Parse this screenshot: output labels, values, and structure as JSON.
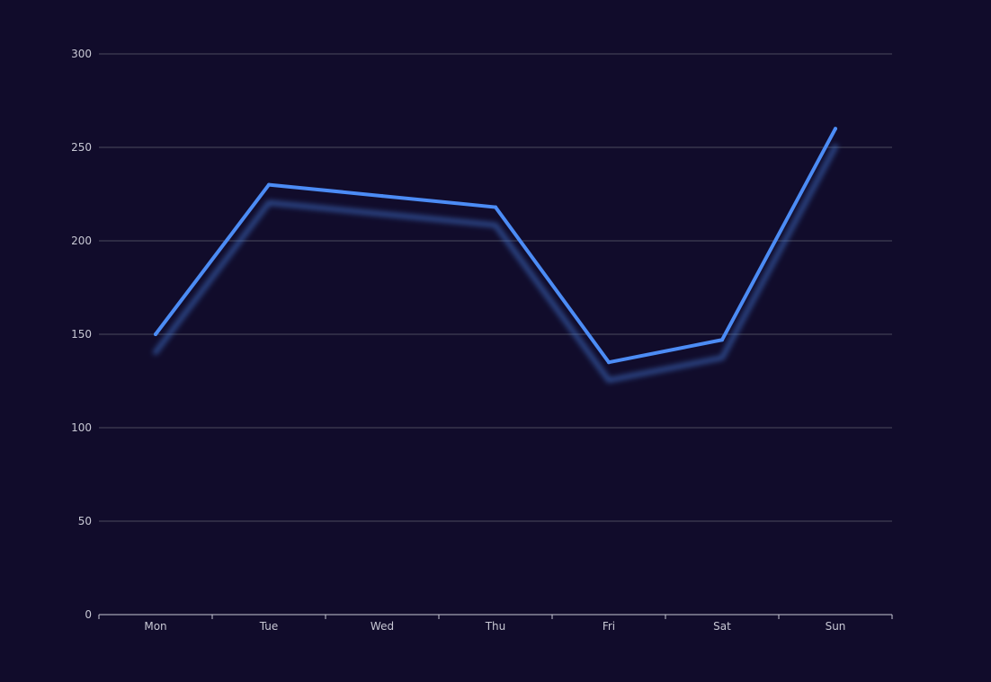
{
  "chart_data": {
    "type": "line",
    "categories": [
      "Mon",
      "Tue",
      "Wed",
      "Thu",
      "Fri",
      "Sat",
      "Sun"
    ],
    "series": [
      {
        "values": [
          150,
          230,
          224,
          218,
          135,
          147,
          260
        ]
      }
    ],
    "ylim": [
      0,
      300
    ],
    "y_ticks": [
      0,
      50,
      100,
      150,
      200,
      250,
      300
    ],
    "grid": true,
    "colors": {
      "background": "#110c2b",
      "line": "#4c8cf5",
      "grid": "#4a4a5c",
      "axis": "#c8c8d4",
      "label": "#c8c8d4"
    }
  }
}
